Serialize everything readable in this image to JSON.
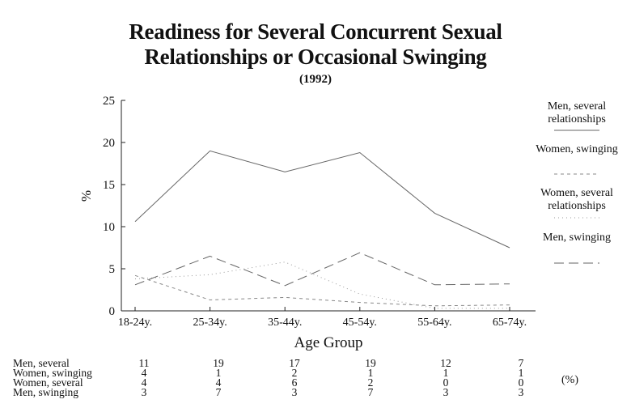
{
  "chart_data": {
    "type": "line",
    "title": "Readiness for Several Concurrent Sexual",
    "title_line2": "Relationships or Occasional Swinging",
    "subtitle": "(1992)",
    "xlabel": "Age Group",
    "ylabel": "%",
    "ylim": [
      0,
      25
    ],
    "yticks": [
      "0",
      "5",
      "10",
      "15",
      "20",
      "25"
    ],
    "categories": [
      "18-24y.",
      "25-34y.",
      "35-44y.",
      "45-54y.",
      "55-64y.",
      "65-74y."
    ],
    "grid": false,
    "legend_position": "right",
    "series": [
      {
        "name": "Men, several relationships",
        "style": "solid",
        "color": "#666666",
        "values": [
          10.6,
          19.0,
          16.5,
          18.8,
          11.6,
          7.5
        ]
      },
      {
        "name": "Women, swinging",
        "style": "dashed",
        "color": "#888888",
        "values": [
          4.2,
          1.3,
          1.6,
          1.0,
          0.6,
          0.7
        ]
      },
      {
        "name": "Women, several relationships",
        "style": "dotted",
        "color": "#999999",
        "values": [
          3.8,
          4.3,
          5.8,
          2.0,
          0.3,
          0.3
        ]
      },
      {
        "name": "Men, swinging",
        "style": "longdash",
        "color": "#666666",
        "values": [
          3.1,
          6.5,
          3.0,
          6.9,
          3.1,
          3.2
        ]
      }
    ],
    "legend": [
      {
        "line1": "Men, several",
        "line2": "relationships"
      },
      {
        "line1": "Women, swinging",
        "line2": ""
      },
      {
        "line1": "Women, several",
        "line2": "relationships"
      },
      {
        "line1": "Men, swinging",
        "line2": ""
      }
    ],
    "table": {
      "rows": [
        {
          "label": "Men, several",
          "values": [
            "11",
            "19",
            "17",
            "19",
            "12",
            "7"
          ]
        },
        {
          "label": "Women, swinging",
          "values": [
            "4",
            "1",
            "2",
            "1",
            "1",
            "1"
          ]
        },
        {
          "label": "Women, several",
          "values": [
            "4",
            "4",
            "6",
            "2",
            "0",
            "0"
          ]
        },
        {
          "label": "Men, swinging",
          "values": [
            "3",
            "7",
            "3",
            "7",
            "3",
            "3"
          ]
        }
      ],
      "unit": "(%)"
    }
  }
}
